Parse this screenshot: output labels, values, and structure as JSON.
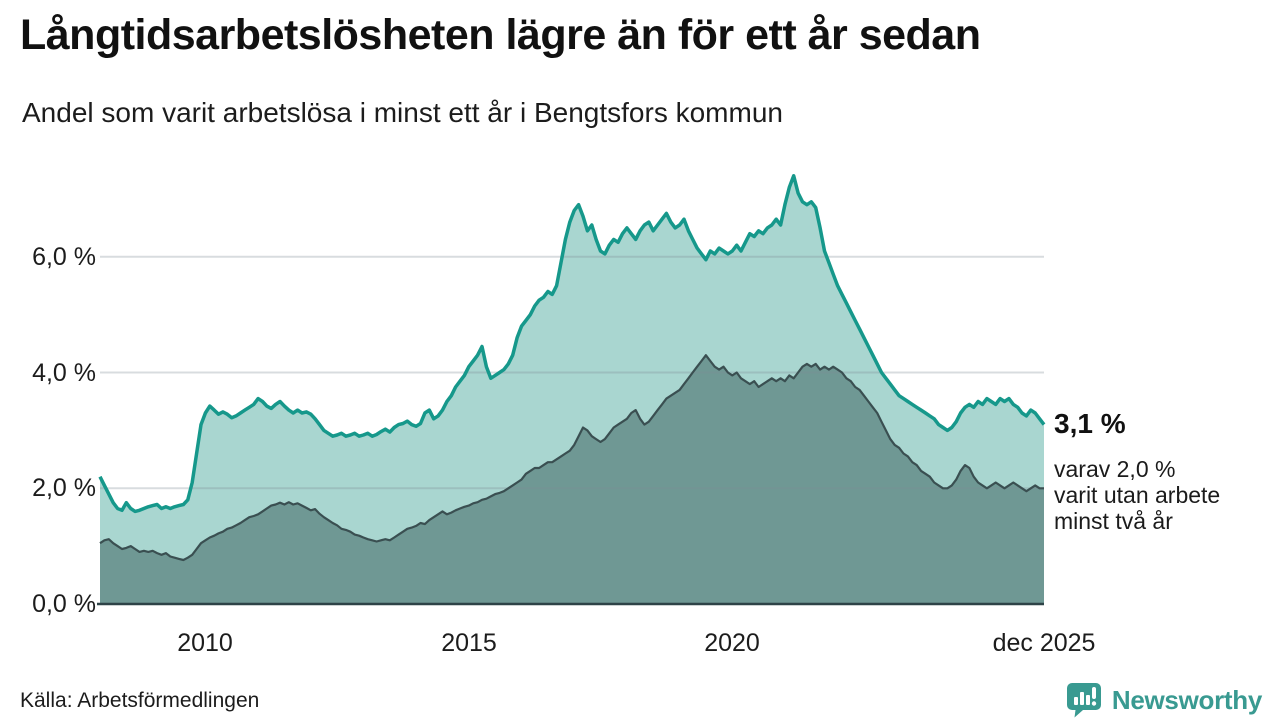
{
  "header": {
    "title": "Långtidsarbetslösheten lägre än för ett år sedan",
    "subtitle": "Andel som varit arbetslösa i minst ett år i Bengtsfors kommun"
  },
  "annotation": {
    "latest_value": "3,1 %",
    "breakdown_lines": [
      "varav 2,0 %",
      "varit utan arbete",
      "minst två år"
    ]
  },
  "footer": {
    "source": "Källa: Arbetsförmedlingen",
    "brand": "Newsworthy"
  },
  "colors": {
    "accent_teal": "#16988b",
    "light_fill": "#a9d6d0",
    "dark_fill": "#6f9894",
    "dark_line": "#3a4f51",
    "axis": "#2e4347",
    "gridline": "rgba(126,138,148,0.3)",
    "brand_teal": "#399a91",
    "text": "#1a1a1a"
  },
  "chart_data": {
    "type": "area",
    "title": "Långtidsarbetslösheten lägre än för ett år sedan",
    "subtitle": "Andel som varit arbetslösa i minst ett år i Bengtsfors kommun",
    "unit": "%",
    "x_start": 2008.0,
    "x_end": 2025.9167,
    "x_resolution": "monthly",
    "ylim": [
      0,
      7.5
    ],
    "grid": "horizontal",
    "legend": "none",
    "x_ticks": [
      {
        "label": "2010",
        "t": 2010.0
      },
      {
        "label": "2015",
        "t": 2015.0
      },
      {
        "label": "2020",
        "t": 2020.0
      },
      {
        "label": "dec 2025",
        "t": 2025.9167
      }
    ],
    "y_ticks": [
      {
        "label": "0,0 %",
        "v": 0
      },
      {
        "label": "2,0 %",
        "v": 2
      },
      {
        "label": "4,0 %",
        "v": 4
      },
      {
        "label": "6,0 %",
        "v": 6
      }
    ],
    "series": [
      {
        "name": "Arbetslösa minst ett år",
        "line_color": "#16988b",
        "fill_color": "#a9d6d0",
        "last_value_label": "3,1 %",
        "values": [
          2.2,
          2.05,
          1.9,
          1.75,
          1.65,
          1.62,
          1.75,
          1.65,
          1.6,
          1.62,
          1.65,
          1.68,
          1.7,
          1.72,
          1.65,
          1.68,
          1.65,
          1.68,
          1.7,
          1.72,
          1.8,
          2.1,
          2.6,
          3.1,
          3.3,
          3.42,
          3.35,
          3.28,
          3.32,
          3.28,
          3.22,
          3.25,
          3.3,
          3.35,
          3.4,
          3.45,
          3.55,
          3.5,
          3.42,
          3.38,
          3.45,
          3.5,
          3.42,
          3.35,
          3.3,
          3.35,
          3.3,
          3.32,
          3.28,
          3.2,
          3.1,
          3.0,
          2.95,
          2.9,
          2.92,
          2.95,
          2.9,
          2.92,
          2.95,
          2.9,
          2.92,
          2.95,
          2.9,
          2.93,
          2.98,
          3.02,
          2.97,
          3.05,
          3.1,
          3.12,
          3.16,
          3.1,
          3.07,
          3.12,
          3.3,
          3.35,
          3.2,
          3.25,
          3.35,
          3.5,
          3.6,
          3.75,
          3.85,
          3.95,
          4.1,
          4.2,
          4.3,
          4.45,
          4.1,
          3.9,
          3.95,
          4.0,
          4.05,
          4.15,
          4.3,
          4.6,
          4.8,
          4.9,
          5.0,
          5.15,
          5.25,
          5.3,
          5.4,
          5.35,
          5.5,
          5.9,
          6.3,
          6.6,
          6.8,
          6.9,
          6.7,
          6.45,
          6.55,
          6.3,
          6.1,
          6.05,
          6.2,
          6.3,
          6.25,
          6.4,
          6.5,
          6.4,
          6.3,
          6.45,
          6.55,
          6.6,
          6.45,
          6.55,
          6.65,
          6.75,
          6.6,
          6.5,
          6.55,
          6.65,
          6.45,
          6.3,
          6.15,
          6.05,
          5.95,
          6.1,
          6.05,
          6.15,
          6.1,
          6.05,
          6.1,
          6.2,
          6.1,
          6.25,
          6.4,
          6.35,
          6.45,
          6.4,
          6.5,
          6.55,
          6.65,
          6.55,
          6.9,
          7.2,
          7.4,
          7.1,
          6.95,
          6.9,
          6.95,
          6.85,
          6.5,
          6.1,
          5.9,
          5.7,
          5.5,
          5.35,
          5.2,
          5.05,
          4.9,
          4.75,
          4.6,
          4.45,
          4.3,
          4.15,
          4.0,
          3.9,
          3.8,
          3.7,
          3.6,
          3.55,
          3.5,
          3.45,
          3.4,
          3.35,
          3.3,
          3.25,
          3.2,
          3.1,
          3.05,
          3.0,
          3.05,
          3.15,
          3.3,
          3.4,
          3.45,
          3.4,
          3.5,
          3.45,
          3.55,
          3.5,
          3.45,
          3.55,
          3.5,
          3.55,
          3.45,
          3.4,
          3.3,
          3.25,
          3.35,
          3.3,
          3.2,
          3.1
        ]
      },
      {
        "name": "Arbetslösa minst två år",
        "line_color": "#3a4f51",
        "fill_color": "#6f9894",
        "last_value_label": "2,0 %",
        "values": [
          1.05,
          1.1,
          1.12,
          1.05,
          1.0,
          0.95,
          0.97,
          1.0,
          0.95,
          0.9,
          0.92,
          0.9,
          0.92,
          0.88,
          0.85,
          0.88,
          0.82,
          0.8,
          0.78,
          0.76,
          0.8,
          0.85,
          0.95,
          1.05,
          1.1,
          1.15,
          1.18,
          1.22,
          1.25,
          1.3,
          1.32,
          1.36,
          1.4,
          1.45,
          1.5,
          1.52,
          1.55,
          1.6,
          1.65,
          1.7,
          1.72,
          1.75,
          1.72,
          1.76,
          1.72,
          1.74,
          1.7,
          1.66,
          1.62,
          1.64,
          1.56,
          1.5,
          1.45,
          1.4,
          1.36,
          1.3,
          1.28,
          1.25,
          1.2,
          1.18,
          1.15,
          1.12,
          1.1,
          1.08,
          1.1,
          1.12,
          1.1,
          1.15,
          1.2,
          1.25,
          1.3,
          1.32,
          1.35,
          1.4,
          1.38,
          1.45,
          1.5,
          1.55,
          1.6,
          1.55,
          1.58,
          1.62,
          1.65,
          1.68,
          1.7,
          1.74,
          1.76,
          1.8,
          1.82,
          1.86,
          1.9,
          1.92,
          1.95,
          2.0,
          2.05,
          2.1,
          2.15,
          2.25,
          2.3,
          2.35,
          2.35,
          2.4,
          2.45,
          2.45,
          2.5,
          2.55,
          2.6,
          2.65,
          2.75,
          2.9,
          3.05,
          3.0,
          2.9,
          2.85,
          2.8,
          2.85,
          2.95,
          3.05,
          3.1,
          3.15,
          3.2,
          3.3,
          3.35,
          3.2,
          3.1,
          3.15,
          3.25,
          3.35,
          3.45,
          3.55,
          3.6,
          3.65,
          3.7,
          3.8,
          3.9,
          4.0,
          4.1,
          4.2,
          4.3,
          4.2,
          4.1,
          4.05,
          4.1,
          4.0,
          3.95,
          4.0,
          3.9,
          3.85,
          3.8,
          3.85,
          3.75,
          3.8,
          3.85,
          3.9,
          3.85,
          3.9,
          3.85,
          3.95,
          3.9,
          4.0,
          4.1,
          4.15,
          4.1,
          4.15,
          4.05,
          4.1,
          4.05,
          4.1,
          4.05,
          4.0,
          3.9,
          3.85,
          3.75,
          3.7,
          3.6,
          3.5,
          3.4,
          3.3,
          3.15,
          3.0,
          2.85,
          2.75,
          2.7,
          2.6,
          2.55,
          2.45,
          2.4,
          2.3,
          2.25,
          2.2,
          2.1,
          2.05,
          2.0,
          2.0,
          2.05,
          2.15,
          2.3,
          2.4,
          2.35,
          2.2,
          2.1,
          2.05,
          2.0,
          2.05,
          2.1,
          2.05,
          2.0,
          2.05,
          2.1,
          2.05,
          2.0,
          1.95,
          2.0,
          2.05,
          2.0,
          2.0
        ]
      }
    ]
  }
}
